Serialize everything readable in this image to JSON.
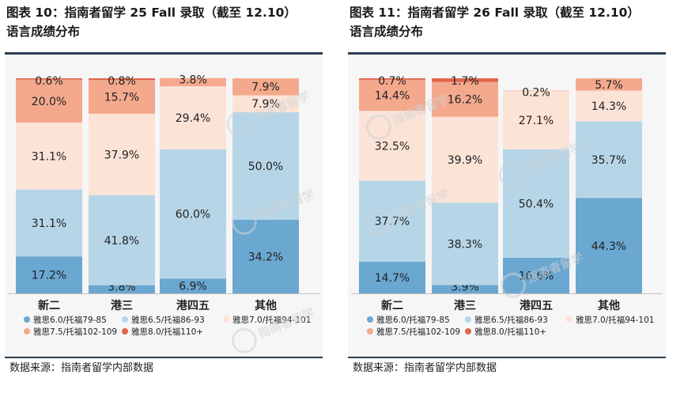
{
  "charts": [
    {
      "title_line1": "图表 10：指南者留学 25 Fall 录取（截至 12.10）",
      "title_line2": "语言成绩分布",
      "source": "数据来源：指南者留学内部数据"
    },
    {
      "title_line1": "图表 11：指南者留学 26 Fall 录取（截至 12.10）",
      "title_line2": "语言成绩分布",
      "source": "数据来源：指南者留学内部数据"
    }
  ],
  "watermark_text": "指南者留学",
  "colors": {
    "ielts6": "#6aa7d1",
    "ielts65": "#b6d6e7",
    "ielts7": "#fbe3d6",
    "ielts75": "#f4a98d",
    "ielts8": "#e0654a"
  },
  "chart_data": [
    {
      "type": "bar",
      "stacked": true,
      "categories": [
        "新二",
        "港三",
        "港四五",
        "其他"
      ],
      "ylim": [
        0,
        100
      ],
      "legend_position": "bottom",
      "series": [
        {
          "name": "雅思6.0/托福79-85",
          "color": "#6aa7d1",
          "values": [
            17.2,
            3.8,
            6.9,
            34.2
          ],
          "labels": [
            "17.2%",
            "3.8%",
            "6.9%",
            "34.2%"
          ]
        },
        {
          "name": "雅思6.5/托福86-93",
          "color": "#b6d6e7",
          "values": [
            31.1,
            41.8,
            60.0,
            50.0
          ],
          "labels": [
            "31.1%",
            "41.8%",
            "60.0%",
            "50.0%"
          ]
        },
        {
          "name": "雅思7.0/托福94-101",
          "color": "#fbe3d6",
          "values": [
            31.1,
            37.9,
            29.4,
            7.9
          ],
          "labels": [
            "31.1%",
            "37.9%",
            "29.4%",
            "7.9%"
          ]
        },
        {
          "name": "雅思7.5/托福102-109",
          "color": "#f4a98d",
          "values": [
            20.0,
            15.7,
            3.8,
            7.9
          ],
          "labels": [
            "20.0%",
            "15.7%",
            "3.8%",
            "7.9%"
          ]
        },
        {
          "name": "雅思8.0/托福110+",
          "color": "#e0654a",
          "values": [
            0.6,
            0.8,
            0,
            0
          ],
          "labels": [
            "0.6%",
            "0.8%",
            "",
            ""
          ]
        }
      ]
    },
    {
      "type": "bar",
      "stacked": true,
      "categories": [
        "新二",
        "港三",
        "港四五",
        "其他"
      ],
      "ylim": [
        0,
        100
      ],
      "legend_position": "bottom",
      "series": [
        {
          "name": "雅思6.0/托福79-85",
          "color": "#6aa7d1",
          "values": [
            14.7,
            3.9,
            16.6,
            44.3
          ],
          "labels": [
            "14.7%",
            "3.9%",
            "16.6%",
            "44.3%"
          ]
        },
        {
          "name": "雅思6.5/托福86-93",
          "color": "#b6d6e7",
          "values": [
            37.7,
            38.3,
            50.4,
            35.7
          ],
          "labels": [
            "37.7%",
            "38.3%",
            "50.4%",
            "35.7%"
          ]
        },
        {
          "name": "雅思7.0/托福94-101",
          "color": "#fbe3d6",
          "values": [
            32.5,
            39.9,
            27.1,
            14.3
          ],
          "labels": [
            "32.5%",
            "39.9%",
            "27.1%",
            "14.3%"
          ]
        },
        {
          "name": "雅思7.5/托福102-109",
          "color": "#f4a98d",
          "values": [
            14.4,
            16.2,
            0.2,
            5.7
          ],
          "labels": [
            "14.4%",
            "16.2%",
            "0.2%",
            "5.7%"
          ]
        },
        {
          "name": "雅思8.0/托福110+",
          "color": "#e0654a",
          "values": [
            0.7,
            1.7,
            0,
            0
          ],
          "labels": [
            "0.7%",
            "1.7%",
            "",
            ""
          ]
        }
      ]
    }
  ]
}
